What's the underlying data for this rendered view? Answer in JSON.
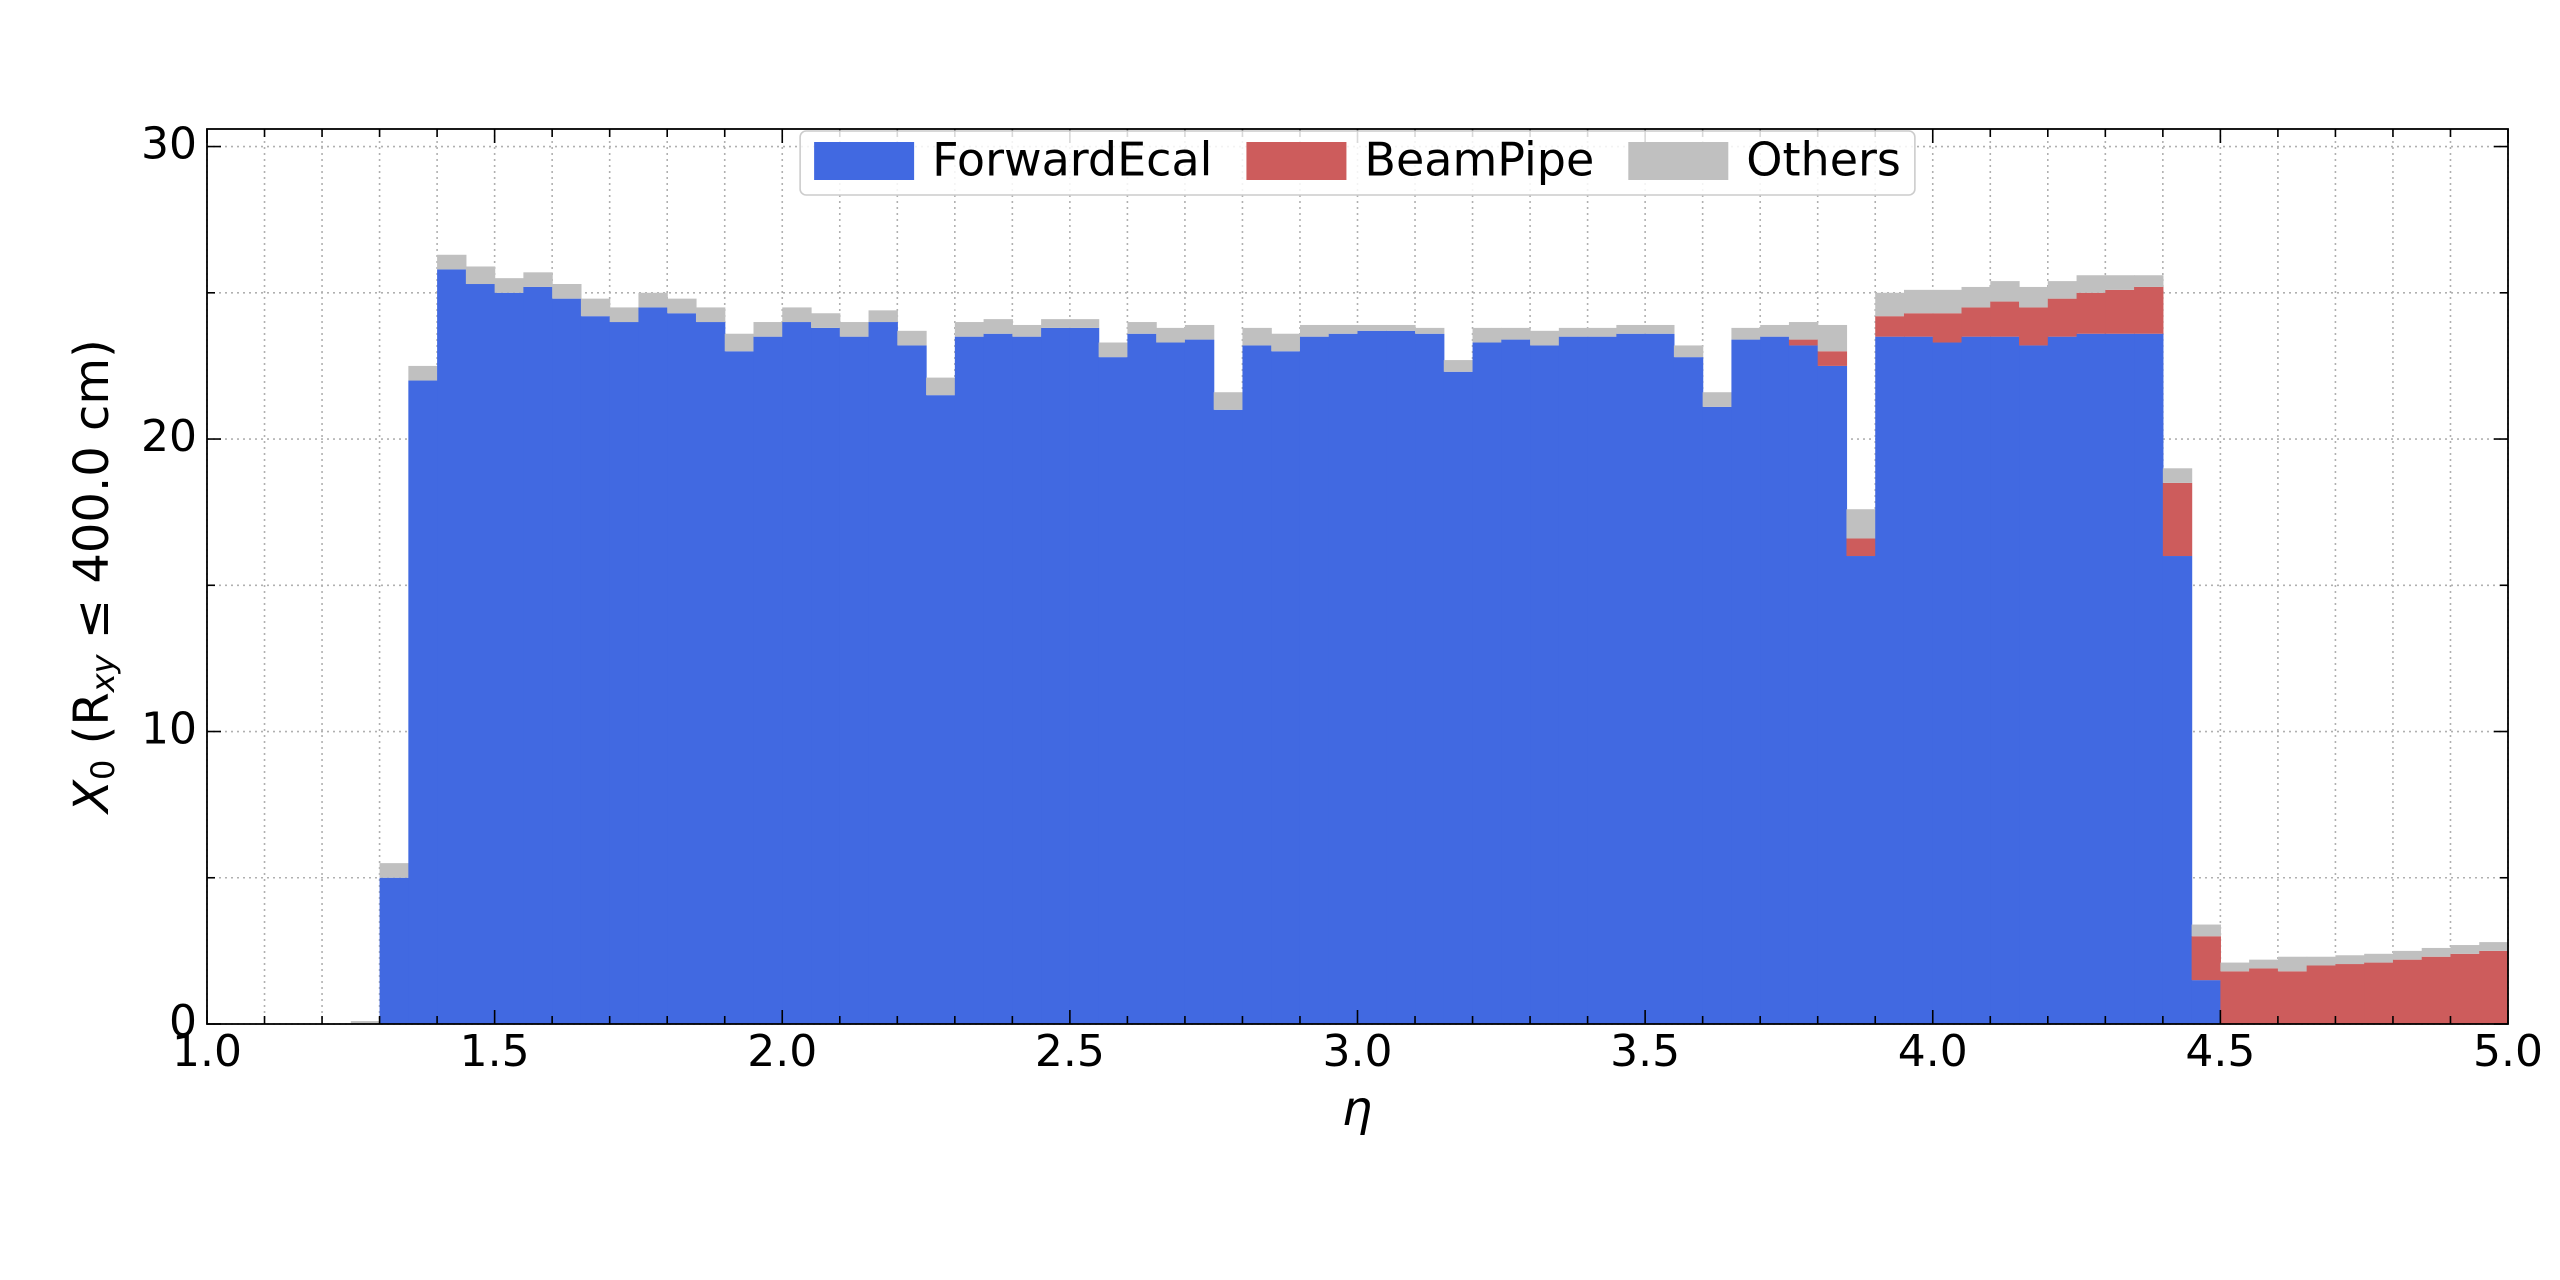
{
  "chart_data": {
    "type": "histogram",
    "stacked": true,
    "xlabel": "η",
    "ylabel": [
      "X",
      "0",
      " (R",
      "xy",
      " ≤ 400.0 cm)"
    ],
    "bins": [
      1,
      1.05,
      1.1,
      1.15,
      1.2,
      1.25,
      1.3,
      1.35,
      1.4,
      1.45,
      1.5,
      1.55,
      1.6,
      1.65,
      1.7,
      1.75,
      1.8,
      1.85,
      1.9,
      1.95,
      2,
      2.05,
      2.1,
      2.15,
      2.2,
      2.25,
      2.3,
      2.35,
      2.4,
      2.45,
      2.5,
      2.55,
      2.6,
      2.65,
      2.7,
      2.75,
      2.8,
      2.85,
      2.9,
      2.95,
      3,
      3.05,
      3.1,
      3.15,
      3.2,
      3.25,
      3.3,
      3.35,
      3.4,
      3.45,
      3.5,
      3.55,
      3.6,
      3.65,
      3.7,
      3.75,
      3.8,
      3.85,
      3.9,
      3.95,
      4,
      4.05,
      4.1,
      4.15,
      4.2,
      4.25,
      4.3,
      4.35,
      4.4,
      4.45,
      4.5,
      4.55,
      4.6,
      4.65,
      4.7,
      4.75,
      4.8,
      4.85,
      4.9,
      4.95,
      5
    ],
    "series": [
      {
        "name": "ForwardEcal",
        "color": "#4169e1",
        "values": [
          0,
          0,
          0,
          0,
          0,
          0,
          5,
          22,
          25.8,
          25.3,
          25,
          25.2,
          24.8,
          24.2,
          24.0,
          24.5,
          24.3,
          24.0,
          23.0,
          23.5,
          24.0,
          23.8,
          23.5,
          24.0,
          23.2,
          21.5,
          23.5,
          23.6,
          23.5,
          23.8,
          23.8,
          22.8,
          23.6,
          23.3,
          23.4,
          21.0,
          23.2,
          23.0,
          23.5,
          23.6,
          23.7,
          23.7,
          23.6,
          22.3,
          23.3,
          23.4,
          23.2,
          23.5,
          23.5,
          23.6,
          23.6,
          22.8,
          21.1,
          23.4,
          23.5,
          23.2,
          22.5,
          16,
          23.5,
          23.5,
          23.3,
          23.5,
          23.5,
          23.2,
          23.5,
          23.6,
          23.6,
          23.6,
          16,
          1.5,
          0,
          0,
          0,
          0,
          0,
          0,
          0,
          0,
          0,
          0
        ]
      },
      {
        "name": "BeamPipe",
        "color": "#cd5c5c",
        "values": [
          0,
          0,
          0,
          0,
          0,
          0,
          0,
          0,
          0,
          0,
          0,
          0,
          0,
          0,
          0,
          0,
          0,
          0,
          0,
          0,
          0,
          0,
          0,
          0,
          0,
          0,
          0,
          0,
          0,
          0,
          0,
          0,
          0,
          0,
          0,
          0,
          0,
          0,
          0,
          0,
          0,
          0,
          0,
          0,
          0,
          0,
          0,
          0,
          0,
          0,
          0,
          0,
          0,
          0,
          0,
          0.2,
          0.5,
          0.6,
          0.7,
          0.8,
          1.0,
          1.0,
          1.2,
          1.3,
          1.3,
          1.4,
          1.5,
          1.6,
          2.5,
          1.5,
          1.8,
          1.9,
          1.8,
          2.0,
          2.05,
          2.1,
          2.2,
          2.3,
          2.4,
          2.5
        ]
      },
      {
        "name": "Others",
        "color": "#c0c0c0",
        "values": [
          0,
          0,
          0,
          0,
          0,
          0.1,
          0.5,
          0.5,
          0.5,
          0.6,
          0.5,
          0.5,
          0.5,
          0.6,
          0.5,
          0.5,
          0.5,
          0.5,
          0.6,
          0.5,
          0.5,
          0.5,
          0.5,
          0.4,
          0.5,
          0.6,
          0.5,
          0.5,
          0.4,
          0.3,
          0.3,
          0.5,
          0.4,
          0.5,
          0.5,
          0.6,
          0.6,
          0.6,
          0.4,
          0.3,
          0.2,
          0.2,
          0.2,
          0.4,
          0.5,
          0.4,
          0.5,
          0.3,
          0.3,
          0.3,
          0.3,
          0.4,
          0.5,
          0.4,
          0.4,
          0.6,
          0.9,
          1,
          0.8,
          0.8,
          0.8,
          0.7,
          0.7,
          0.7,
          0.6,
          0.6,
          0.5,
          0.4,
          0.5,
          0.4,
          0.3,
          0.3,
          0.5,
          0.3,
          0.3,
          0.3,
          0.3,
          0.3,
          0.3,
          0.3
        ]
      }
    ],
    "xlim": [
      1,
      5
    ],
    "ylim": [
      0,
      30.6
    ],
    "xticks": [
      {
        "value": 1,
        "label": "1.0"
      },
      {
        "value": 1.5,
        "label": "1.5"
      },
      {
        "value": 2,
        "label": "2.0"
      },
      {
        "value": 2.5,
        "label": "2.5"
      },
      {
        "value": 3,
        "label": "3.0"
      },
      {
        "value": 3.5,
        "label": "3.5"
      },
      {
        "value": 4,
        "label": "4.0"
      },
      {
        "value": 4.5,
        "label": "4.5"
      },
      {
        "value": 5,
        "label": "5.0"
      }
    ],
    "yticks": [
      0,
      10,
      20,
      30
    ],
    "xminorticks": [
      1.1,
      1.2,
      1.3,
      1.4,
      1.6,
      1.7,
      1.8,
      1.9,
      2.1,
      2.2,
      2.3,
      2.4,
      2.6,
      2.7,
      2.8,
      2.9,
      3.1,
      3.2,
      3.3,
      3.4,
      3.6,
      3.7,
      3.8,
      3.9,
      4.1,
      4.2,
      4.3,
      4.4,
      4.6,
      4.7,
      4.8,
      4.9
    ],
    "yminorticks": [
      5,
      15,
      25
    ],
    "grid": true,
    "legend": "upper center"
  }
}
